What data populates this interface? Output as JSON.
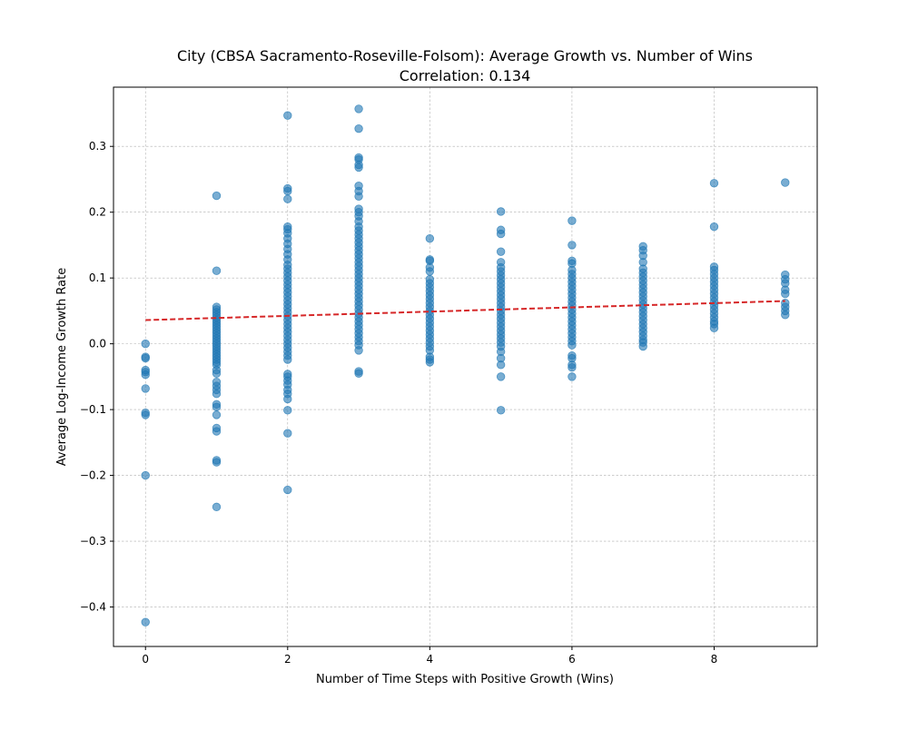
{
  "chart_data": {
    "type": "scatter",
    "title": "City (CBSA Sacramento-Roseville-Folsom): Average Growth vs. Number of Wins",
    "subtitle": "Correlation: 0.134",
    "xlabel": "Number of Time Steps with Positive Growth (Wins)",
    "ylabel": "Average Log-Income Growth Rate",
    "xlim": [
      -0.45,
      9.45
    ],
    "ylim": [
      -0.46,
      0.39
    ],
    "xticks": [
      0,
      2,
      4,
      6,
      8
    ],
    "xtick_labels": [
      "0",
      "2",
      "4",
      "6",
      "8"
    ],
    "yticks": [
      -0.4,
      -0.3,
      -0.2,
      -0.1,
      0.0,
      0.1,
      0.2,
      0.3
    ],
    "ytick_labels": [
      "−0.4",
      "−0.3",
      "−0.2",
      "−0.1",
      "0.0",
      "0.1",
      "0.2",
      "0.3"
    ],
    "grid": true,
    "point_color": "#1f77b4",
    "trend_color": "#d62728",
    "trendline": {
      "x": [
        0,
        9
      ],
      "y": [
        0.036,
        0.065
      ]
    },
    "points": [
      {
        "x": 0,
        "y": 0.0
      },
      {
        "x": 0,
        "y": -0.02
      },
      {
        "x": 0,
        "y": -0.022
      },
      {
        "x": 0,
        "y": -0.04
      },
      {
        "x": 0,
        "y": -0.043
      },
      {
        "x": 0,
        "y": -0.047
      },
      {
        "x": 0,
        "y": -0.068
      },
      {
        "x": 0,
        "y": -0.105
      },
      {
        "x": 0,
        "y": -0.108
      },
      {
        "x": 0,
        "y": -0.2
      },
      {
        "x": 0,
        "y": -0.423
      },
      {
        "x": 1,
        "y": 0.225
      },
      {
        "x": 1,
        "y": 0.111
      },
      {
        "x": 1,
        "y": 0.056
      },
      {
        "x": 1,
        "y": 0.052
      },
      {
        "x": 1,
        "y": 0.048
      },
      {
        "x": 1,
        "y": 0.044
      },
      {
        "x": 1,
        "y": 0.04
      },
      {
        "x": 1,
        "y": 0.036
      },
      {
        "x": 1,
        "y": 0.032
      },
      {
        "x": 1,
        "y": 0.028
      },
      {
        "x": 1,
        "y": 0.024
      },
      {
        "x": 1,
        "y": 0.02
      },
      {
        "x": 1,
        "y": 0.016
      },
      {
        "x": 1,
        "y": 0.012
      },
      {
        "x": 1,
        "y": 0.008
      },
      {
        "x": 1,
        "y": 0.004
      },
      {
        "x": 1,
        "y": 0.0
      },
      {
        "x": 1,
        "y": -0.004
      },
      {
        "x": 1,
        "y": -0.008
      },
      {
        "x": 1,
        "y": -0.012
      },
      {
        "x": 1,
        "y": -0.016
      },
      {
        "x": 1,
        "y": -0.02
      },
      {
        "x": 1,
        "y": -0.024
      },
      {
        "x": 1,
        "y": -0.028
      },
      {
        "x": 1,
        "y": -0.032
      },
      {
        "x": 1,
        "y": -0.04
      },
      {
        "x": 1,
        "y": -0.045
      },
      {
        "x": 1,
        "y": -0.058
      },
      {
        "x": 1,
        "y": -0.064
      },
      {
        "x": 1,
        "y": -0.07
      },
      {
        "x": 1,
        "y": -0.076
      },
      {
        "x": 1,
        "y": -0.092
      },
      {
        "x": 1,
        "y": -0.096
      },
      {
        "x": 1,
        "y": -0.108
      },
      {
        "x": 1,
        "y": -0.128
      },
      {
        "x": 1,
        "y": -0.133
      },
      {
        "x": 1,
        "y": -0.177
      },
      {
        "x": 1,
        "y": -0.18
      },
      {
        "x": 1,
        "y": -0.248
      },
      {
        "x": 2,
        "y": 0.347
      },
      {
        "x": 2,
        "y": 0.236
      },
      {
        "x": 2,
        "y": 0.232
      },
      {
        "x": 2,
        "y": 0.22
      },
      {
        "x": 2,
        "y": 0.178
      },
      {
        "x": 2,
        "y": 0.174
      },
      {
        "x": 2,
        "y": 0.168
      },
      {
        "x": 2,
        "y": 0.16
      },
      {
        "x": 2,
        "y": 0.152
      },
      {
        "x": 2,
        "y": 0.144
      },
      {
        "x": 2,
        "y": 0.136
      },
      {
        "x": 2,
        "y": 0.128
      },
      {
        "x": 2,
        "y": 0.12
      },
      {
        "x": 2,
        "y": 0.114
      },
      {
        "x": 2,
        "y": 0.108
      },
      {
        "x": 2,
        "y": 0.102
      },
      {
        "x": 2,
        "y": 0.096
      },
      {
        "x": 2,
        "y": 0.09
      },
      {
        "x": 2,
        "y": 0.084
      },
      {
        "x": 2,
        "y": 0.078
      },
      {
        "x": 2,
        "y": 0.072
      },
      {
        "x": 2,
        "y": 0.066
      },
      {
        "x": 2,
        "y": 0.06
      },
      {
        "x": 2,
        "y": 0.054
      },
      {
        "x": 2,
        "y": 0.048
      },
      {
        "x": 2,
        "y": 0.042
      },
      {
        "x": 2,
        "y": 0.036
      },
      {
        "x": 2,
        "y": 0.03
      },
      {
        "x": 2,
        "y": 0.024
      },
      {
        "x": 2,
        "y": 0.018
      },
      {
        "x": 2,
        "y": 0.012
      },
      {
        "x": 2,
        "y": 0.006
      },
      {
        "x": 2,
        "y": 0.0
      },
      {
        "x": 2,
        "y": -0.006
      },
      {
        "x": 2,
        "y": -0.012
      },
      {
        "x": 2,
        "y": -0.018
      },
      {
        "x": 2,
        "y": -0.024
      },
      {
        "x": 2,
        "y": -0.046
      },
      {
        "x": 2,
        "y": -0.05
      },
      {
        "x": 2,
        "y": -0.056
      },
      {
        "x": 2,
        "y": -0.062
      },
      {
        "x": 2,
        "y": -0.07
      },
      {
        "x": 2,
        "y": -0.076
      },
      {
        "x": 2,
        "y": -0.084
      },
      {
        "x": 2,
        "y": -0.101
      },
      {
        "x": 2,
        "y": -0.136
      },
      {
        "x": 2,
        "y": -0.222
      },
      {
        "x": 3,
        "y": 0.357
      },
      {
        "x": 3,
        "y": 0.327
      },
      {
        "x": 3,
        "y": 0.283
      },
      {
        "x": 3,
        "y": 0.28
      },
      {
        "x": 3,
        "y": 0.272
      },
      {
        "x": 3,
        "y": 0.268
      },
      {
        "x": 3,
        "y": 0.24
      },
      {
        "x": 3,
        "y": 0.232
      },
      {
        "x": 3,
        "y": 0.224
      },
      {
        "x": 3,
        "y": 0.205
      },
      {
        "x": 3,
        "y": 0.2
      },
      {
        "x": 3,
        "y": 0.194
      },
      {
        "x": 3,
        "y": 0.186
      },
      {
        "x": 3,
        "y": 0.178
      },
      {
        "x": 3,
        "y": 0.172
      },
      {
        "x": 3,
        "y": 0.166
      },
      {
        "x": 3,
        "y": 0.16
      },
      {
        "x": 3,
        "y": 0.154
      },
      {
        "x": 3,
        "y": 0.148
      },
      {
        "x": 3,
        "y": 0.142
      },
      {
        "x": 3,
        "y": 0.136
      },
      {
        "x": 3,
        "y": 0.13
      },
      {
        "x": 3,
        "y": 0.124
      },
      {
        "x": 3,
        "y": 0.118
      },
      {
        "x": 3,
        "y": 0.112
      },
      {
        "x": 3,
        "y": 0.106
      },
      {
        "x": 3,
        "y": 0.1
      },
      {
        "x": 3,
        "y": 0.094
      },
      {
        "x": 3,
        "y": 0.088
      },
      {
        "x": 3,
        "y": 0.082
      },
      {
        "x": 3,
        "y": 0.076
      },
      {
        "x": 3,
        "y": 0.07
      },
      {
        "x": 3,
        "y": 0.064
      },
      {
        "x": 3,
        "y": 0.058
      },
      {
        "x": 3,
        "y": 0.052
      },
      {
        "x": 3,
        "y": 0.046
      },
      {
        "x": 3,
        "y": 0.04
      },
      {
        "x": 3,
        "y": 0.034
      },
      {
        "x": 3,
        "y": 0.028
      },
      {
        "x": 3,
        "y": 0.022
      },
      {
        "x": 3,
        "y": 0.016
      },
      {
        "x": 3,
        "y": 0.01
      },
      {
        "x": 3,
        "y": 0.004
      },
      {
        "x": 3,
        "y": -0.002
      },
      {
        "x": 3,
        "y": -0.01
      },
      {
        "x": 3,
        "y": -0.042
      },
      {
        "x": 3,
        "y": -0.045
      },
      {
        "x": 4,
        "y": 0.16
      },
      {
        "x": 4,
        "y": 0.128
      },
      {
        "x": 4,
        "y": 0.126
      },
      {
        "x": 4,
        "y": 0.116
      },
      {
        "x": 4,
        "y": 0.11
      },
      {
        "x": 4,
        "y": 0.098
      },
      {
        "x": 4,
        "y": 0.092
      },
      {
        "x": 4,
        "y": 0.086
      },
      {
        "x": 4,
        "y": 0.08
      },
      {
        "x": 4,
        "y": 0.074
      },
      {
        "x": 4,
        "y": 0.068
      },
      {
        "x": 4,
        "y": 0.062
      },
      {
        "x": 4,
        "y": 0.056
      },
      {
        "x": 4,
        "y": 0.05
      },
      {
        "x": 4,
        "y": 0.044
      },
      {
        "x": 4,
        "y": 0.038
      },
      {
        "x": 4,
        "y": 0.032
      },
      {
        "x": 4,
        "y": 0.026
      },
      {
        "x": 4,
        "y": 0.02
      },
      {
        "x": 4,
        "y": 0.014
      },
      {
        "x": 4,
        "y": 0.008
      },
      {
        "x": 4,
        "y": 0.002
      },
      {
        "x": 4,
        "y": -0.004
      },
      {
        "x": 4,
        "y": -0.01
      },
      {
        "x": 4,
        "y": -0.02
      },
      {
        "x": 4,
        "y": -0.024
      },
      {
        "x": 4,
        "y": -0.028
      },
      {
        "x": 5,
        "y": 0.201
      },
      {
        "x": 5,
        "y": 0.173
      },
      {
        "x": 5,
        "y": 0.167
      },
      {
        "x": 5,
        "y": 0.14
      },
      {
        "x": 5,
        "y": 0.124
      },
      {
        "x": 5,
        "y": 0.116
      },
      {
        "x": 5,
        "y": 0.11
      },
      {
        "x": 5,
        "y": 0.104
      },
      {
        "x": 5,
        "y": 0.098
      },
      {
        "x": 5,
        "y": 0.092
      },
      {
        "x": 5,
        "y": 0.086
      },
      {
        "x": 5,
        "y": 0.08
      },
      {
        "x": 5,
        "y": 0.074
      },
      {
        "x": 5,
        "y": 0.068
      },
      {
        "x": 5,
        "y": 0.062
      },
      {
        "x": 5,
        "y": 0.056
      },
      {
        "x": 5,
        "y": 0.05
      },
      {
        "x": 5,
        "y": 0.044
      },
      {
        "x": 5,
        "y": 0.038
      },
      {
        "x": 5,
        "y": 0.032
      },
      {
        "x": 5,
        "y": 0.026
      },
      {
        "x": 5,
        "y": 0.02
      },
      {
        "x": 5,
        "y": 0.014
      },
      {
        "x": 5,
        "y": 0.008
      },
      {
        "x": 5,
        "y": 0.002
      },
      {
        "x": 5,
        "y": -0.004
      },
      {
        "x": 5,
        "y": -0.012
      },
      {
        "x": 5,
        "y": -0.022
      },
      {
        "x": 5,
        "y": -0.032
      },
      {
        "x": 5,
        "y": -0.05
      },
      {
        "x": 5,
        "y": -0.101
      },
      {
        "x": 6,
        "y": 0.187
      },
      {
        "x": 6,
        "y": 0.15
      },
      {
        "x": 6,
        "y": 0.126
      },
      {
        "x": 6,
        "y": 0.122
      },
      {
        "x": 6,
        "y": 0.112
      },
      {
        "x": 6,
        "y": 0.106
      },
      {
        "x": 6,
        "y": 0.1
      },
      {
        "x": 6,
        "y": 0.094
      },
      {
        "x": 6,
        "y": 0.088
      },
      {
        "x": 6,
        "y": 0.082
      },
      {
        "x": 6,
        "y": 0.076
      },
      {
        "x": 6,
        "y": 0.07
      },
      {
        "x": 6,
        "y": 0.064
      },
      {
        "x": 6,
        "y": 0.058
      },
      {
        "x": 6,
        "y": 0.052
      },
      {
        "x": 6,
        "y": 0.046
      },
      {
        "x": 6,
        "y": 0.04
      },
      {
        "x": 6,
        "y": 0.034
      },
      {
        "x": 6,
        "y": 0.028
      },
      {
        "x": 6,
        "y": 0.022
      },
      {
        "x": 6,
        "y": 0.016
      },
      {
        "x": 6,
        "y": 0.01
      },
      {
        "x": 6,
        "y": 0.004
      },
      {
        "x": 6,
        "y": -0.002
      },
      {
        "x": 6,
        "y": -0.018
      },
      {
        "x": 6,
        "y": -0.022
      },
      {
        "x": 6,
        "y": -0.032
      },
      {
        "x": 6,
        "y": -0.036
      },
      {
        "x": 6,
        "y": -0.05
      },
      {
        "x": 7,
        "y": 0.148
      },
      {
        "x": 7,
        "y": 0.142
      },
      {
        "x": 7,
        "y": 0.134
      },
      {
        "x": 7,
        "y": 0.124
      },
      {
        "x": 7,
        "y": 0.114
      },
      {
        "x": 7,
        "y": 0.108
      },
      {
        "x": 7,
        "y": 0.102
      },
      {
        "x": 7,
        "y": 0.096
      },
      {
        "x": 7,
        "y": 0.09
      },
      {
        "x": 7,
        "y": 0.084
      },
      {
        "x": 7,
        "y": 0.078
      },
      {
        "x": 7,
        "y": 0.072
      },
      {
        "x": 7,
        "y": 0.066
      },
      {
        "x": 7,
        "y": 0.06
      },
      {
        "x": 7,
        "y": 0.054
      },
      {
        "x": 7,
        "y": 0.048
      },
      {
        "x": 7,
        "y": 0.042
      },
      {
        "x": 7,
        "y": 0.036
      },
      {
        "x": 7,
        "y": 0.03
      },
      {
        "x": 7,
        "y": 0.024
      },
      {
        "x": 7,
        "y": 0.018
      },
      {
        "x": 7,
        "y": 0.012
      },
      {
        "x": 7,
        "y": 0.006
      },
      {
        "x": 7,
        "y": 0.002
      },
      {
        "x": 7,
        "y": -0.004
      },
      {
        "x": 8,
        "y": 0.244
      },
      {
        "x": 8,
        "y": 0.178
      },
      {
        "x": 8,
        "y": 0.117
      },
      {
        "x": 8,
        "y": 0.112
      },
      {
        "x": 8,
        "y": 0.106
      },
      {
        "x": 8,
        "y": 0.1
      },
      {
        "x": 8,
        "y": 0.094
      },
      {
        "x": 8,
        "y": 0.088
      },
      {
        "x": 8,
        "y": 0.082
      },
      {
        "x": 8,
        "y": 0.076
      },
      {
        "x": 8,
        "y": 0.07
      },
      {
        "x": 8,
        "y": 0.064
      },
      {
        "x": 8,
        "y": 0.058
      },
      {
        "x": 8,
        "y": 0.052
      },
      {
        "x": 8,
        "y": 0.046
      },
      {
        "x": 8,
        "y": 0.04
      },
      {
        "x": 8,
        "y": 0.034
      },
      {
        "x": 8,
        "y": 0.03
      },
      {
        "x": 8,
        "y": 0.024
      },
      {
        "x": 9,
        "y": 0.245
      },
      {
        "x": 9,
        "y": 0.105
      },
      {
        "x": 9,
        "y": 0.098
      },
      {
        "x": 9,
        "y": 0.092
      },
      {
        "x": 9,
        "y": 0.082
      },
      {
        "x": 9,
        "y": 0.076
      },
      {
        "x": 9,
        "y": 0.062
      },
      {
        "x": 9,
        "y": 0.056
      },
      {
        "x": 9,
        "y": 0.05
      },
      {
        "x": 9,
        "y": 0.044
      }
    ]
  }
}
